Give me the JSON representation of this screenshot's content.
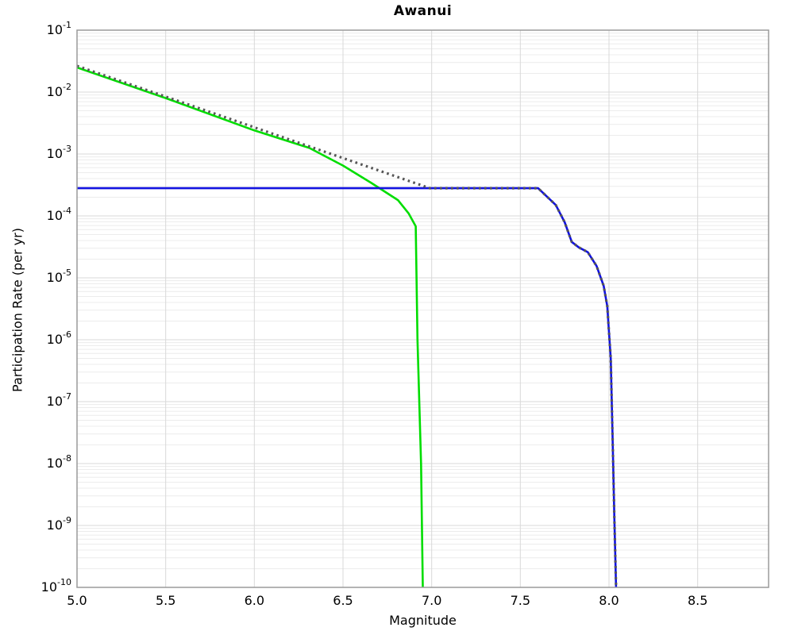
{
  "chart_data": {
    "type": "line",
    "title": "Awanui",
    "xlabel": "Magnitude",
    "ylabel": "Participation Rate (per yr)",
    "xlim": [
      5.0,
      8.9
    ],
    "ylim": [
      1e-10,
      0.1
    ],
    "y_scale": "log",
    "grid": "on",
    "legend": "none",
    "xticks": [
      {
        "value": 5.0,
        "label": "5.0"
      },
      {
        "value": 5.5,
        "label": "5.5"
      },
      {
        "value": 6.0,
        "label": "6.0"
      },
      {
        "value": 6.5,
        "label": "6.5"
      },
      {
        "value": 7.0,
        "label": "7.0"
      },
      {
        "value": 7.5,
        "label": "7.5"
      },
      {
        "value": 8.0,
        "label": "8.0"
      },
      {
        "value": 8.5,
        "label": "8.5"
      }
    ],
    "yticks": [
      {
        "exponent": -1
      },
      {
        "exponent": -2
      },
      {
        "exponent": -3
      },
      {
        "exponent": -4
      },
      {
        "exponent": -5
      },
      {
        "exponent": -6
      },
      {
        "exponent": -7
      },
      {
        "exponent": -8
      },
      {
        "exponent": -9
      },
      {
        "exponent": -10
      }
    ],
    "series": [
      {
        "name": "green-solid-curve",
        "color": "#00dd00",
        "style": "solid",
        "width": 2.6,
        "points": [
          [
            5.0,
            0.025
          ],
          [
            5.5,
            0.008
          ],
          [
            6.0,
            0.0024
          ],
          [
            6.31,
            0.00125
          ],
          [
            6.5,
            0.00065
          ],
          [
            6.66,
            0.00034
          ],
          [
            6.81,
            0.00018
          ],
          [
            6.87,
            0.00011
          ],
          [
            6.91,
            6.8e-05
          ],
          [
            6.92,
            1e-06
          ],
          [
            6.94,
            1e-08
          ],
          [
            6.95,
            1e-10
          ]
        ]
      },
      {
        "name": "blue-solid-curve",
        "color": "#1212e0",
        "style": "solid",
        "width": 2.6,
        "points": [
          [
            5.0,
            0.00028
          ],
          [
            7.6,
            0.00028
          ],
          [
            7.7,
            0.00015
          ],
          [
            7.75,
            7.9e-05
          ],
          [
            7.79,
            3.8e-05
          ],
          [
            7.83,
            3.1e-05
          ],
          [
            7.88,
            2.6e-05
          ],
          [
            7.93,
            1.55e-05
          ],
          [
            7.97,
            7.4e-06
          ],
          [
            7.99,
            3.5e-06
          ],
          [
            8.01,
            5e-07
          ],
          [
            8.02,
            2.7e-08
          ],
          [
            8.03,
            1.4e-09
          ],
          [
            8.04,
            1e-10
          ]
        ]
      },
      {
        "name": "gray-dotted-curve",
        "color": "#565656",
        "style": "dotted",
        "width": 3.2,
        "points": [
          [
            5.0,
            0.0265
          ],
          [
            6.99,
            0.00028
          ],
          [
            7.6,
            0.00028
          ],
          [
            7.7,
            0.00015
          ],
          [
            7.75,
            7.9e-05
          ],
          [
            7.79,
            3.8e-05
          ],
          [
            7.83,
            3.1e-05
          ],
          [
            7.88,
            2.6e-05
          ],
          [
            7.93,
            1.55e-05
          ],
          [
            7.97,
            7.4e-06
          ],
          [
            7.99,
            3.5e-06
          ],
          [
            8.01,
            5e-07
          ],
          [
            8.02,
            2.7e-08
          ],
          [
            8.03,
            1.4e-09
          ],
          [
            8.04,
            1e-10
          ]
        ]
      }
    ],
    "colors": {
      "grid_major": "#d9d9d9",
      "grid_minor": "#ececec",
      "frame": "#9a9a9a",
      "text": "#000000",
      "background": "#ffffff"
    }
  }
}
